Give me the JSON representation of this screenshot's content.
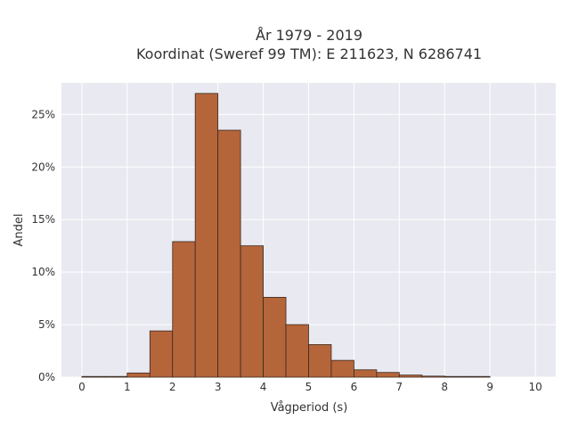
{
  "chart_data": {
    "type": "bar",
    "title_lines": [
      "År 1979 - 2019",
      "Koordinat (Sweref 99 TM): E 211623, N 6286741"
    ],
    "xlabel": "Vågperiod (s)",
    "ylabel": "Andel",
    "bin_width": 0.5,
    "xlim": [
      -0.45,
      10.45
    ],
    "ylim": [
      0,
      28
    ],
    "x_ticks": [
      0,
      1,
      2,
      3,
      4,
      5,
      6,
      7,
      8,
      9,
      10
    ],
    "y_ticks": [
      0,
      5,
      10,
      15,
      20,
      25
    ],
    "y_tick_suffix": "%",
    "grid": true,
    "bar_color": "#b5653a",
    "bar_edge_color": "#3a2a20",
    "plot_bg": "#e9e9f1",
    "bins": [
      {
        "x0": 0.0,
        "value": 0.05
      },
      {
        "x0": 0.5,
        "value": 0.0
      },
      {
        "x0": 1.0,
        "value": 0.4
      },
      {
        "x0": 1.5,
        "value": 4.4
      },
      {
        "x0": 2.0,
        "value": 12.9
      },
      {
        "x0": 2.5,
        "value": 27.0
      },
      {
        "x0": 3.0,
        "value": 23.5
      },
      {
        "x0": 3.5,
        "value": 12.5
      },
      {
        "x0": 4.0,
        "value": 7.6
      },
      {
        "x0": 4.5,
        "value": 5.0
      },
      {
        "x0": 5.0,
        "value": 3.1
      },
      {
        "x0": 5.5,
        "value": 1.6
      },
      {
        "x0": 6.0,
        "value": 0.7
      },
      {
        "x0": 6.5,
        "value": 0.45
      },
      {
        "x0": 7.0,
        "value": 0.2
      },
      {
        "x0": 7.5,
        "value": 0.1
      },
      {
        "x0": 8.0,
        "value": 0.05
      },
      {
        "x0": 8.5,
        "value": 0.03
      }
    ]
  }
}
